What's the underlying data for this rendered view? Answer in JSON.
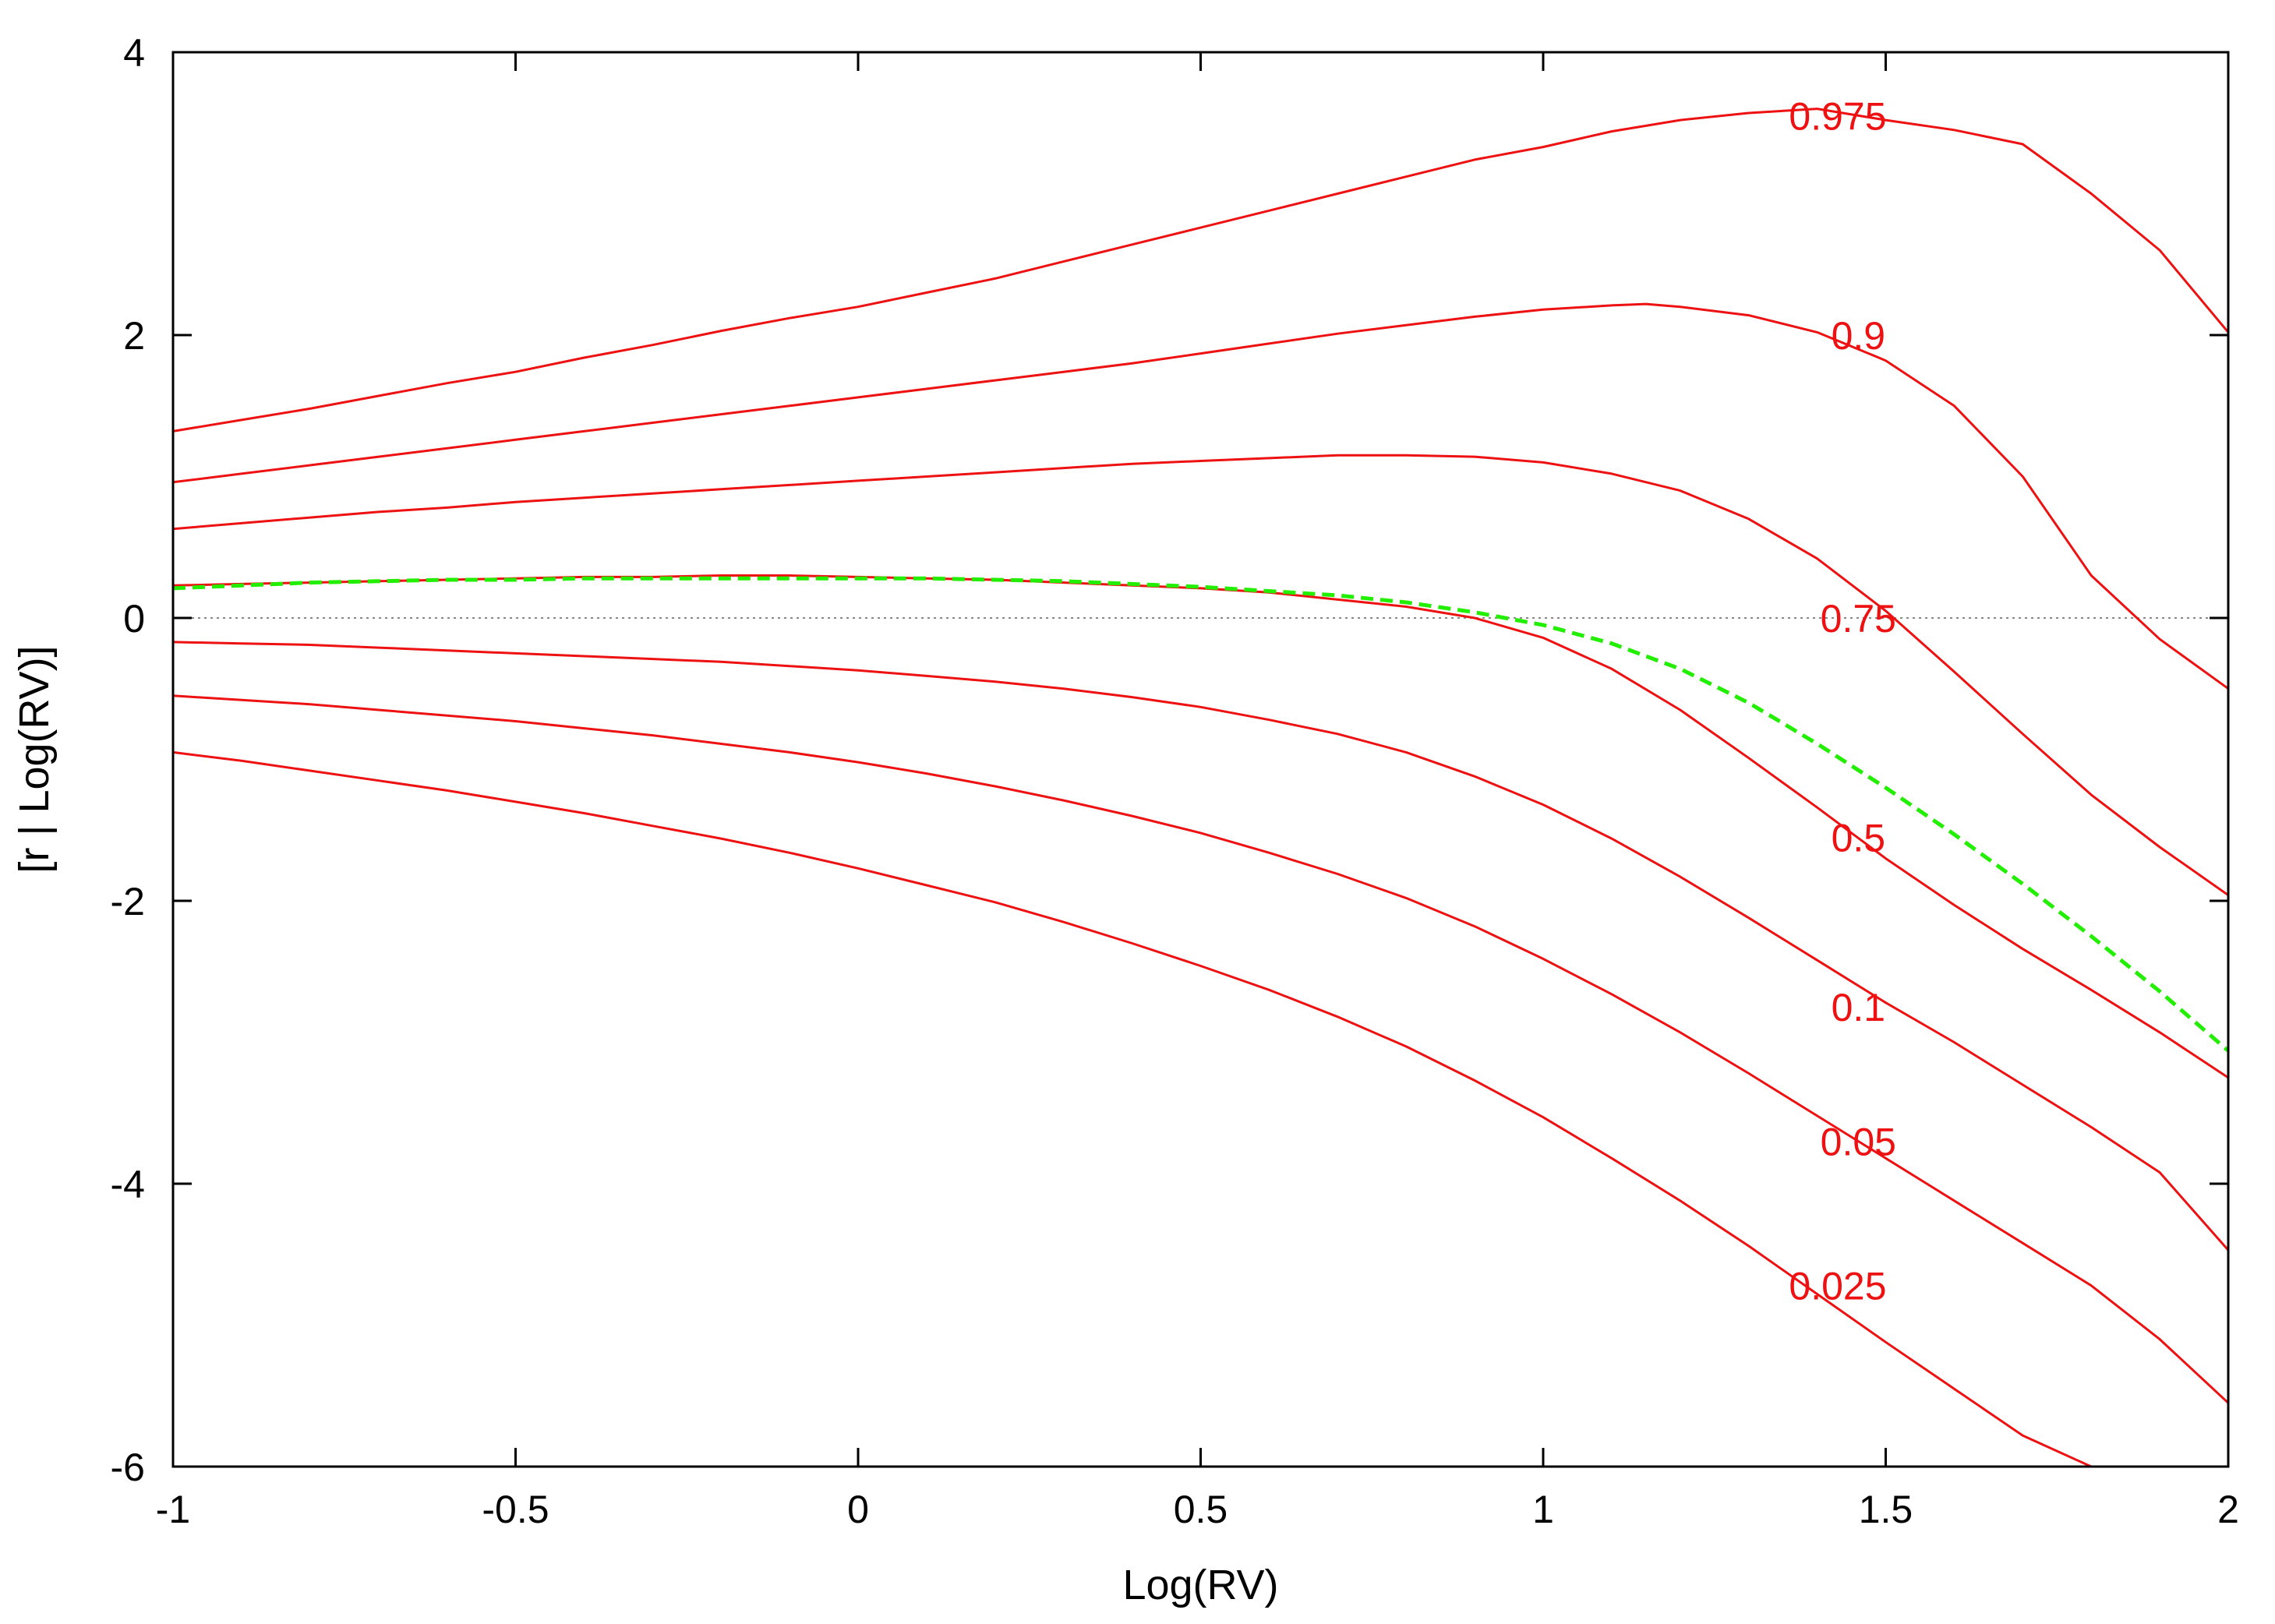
{
  "chart_data": {
    "type": "line",
    "title": "",
    "xlabel": "Log(RV)",
    "ylabel": "[r | Log(RV)]",
    "xlim": [
      -1,
      2
    ],
    "ylim": [
      -6,
      4
    ],
    "xticks": [
      -1,
      -0.5,
      0,
      0.5,
      1,
      1.5,
      2
    ],
    "xtick_labels": [
      "-1",
      "-0.5",
      "0",
      "0.5",
      "1",
      "1.5",
      "2"
    ],
    "yticks": [
      -6,
      -4,
      -2,
      0,
      2,
      4
    ],
    "ytick_labels": [
      "-6",
      "-4",
      "-2",
      "0",
      "2",
      "4"
    ],
    "grid": false,
    "legend": "none",
    "reference_line": {
      "y": 0,
      "style": "dotted",
      "color": "#888888"
    },
    "colors": {
      "quantile": "#ee1111",
      "mean": "#22ee00",
      "axis": "#000000"
    },
    "series": [
      {
        "label": "0.975",
        "label_at": [
          1.43,
          3.55
        ],
        "color": "#ee1111",
        "dash": false,
        "x": [
          -1,
          -0.9,
          -0.8,
          -0.7,
          -0.6,
          -0.5,
          -0.4,
          -0.3,
          -0.2,
          -0.1,
          0,
          0.1,
          0.2,
          0.3,
          0.4,
          0.5,
          0.6,
          0.7,
          0.8,
          0.9,
          1.0,
          1.1,
          1.2,
          1.3,
          1.4,
          1.5,
          1.6,
          1.7,
          1.8,
          1.9,
          2.0
        ],
        "y": [
          1.32,
          1.4,
          1.48,
          1.57,
          1.66,
          1.74,
          1.84,
          1.93,
          2.03,
          2.12,
          2.2,
          2.3,
          2.4,
          2.52,
          2.64,
          2.76,
          2.88,
          3.0,
          3.12,
          3.24,
          3.33,
          3.44,
          3.52,
          3.57,
          3.6,
          3.52,
          3.45,
          3.35,
          3.0,
          2.6,
          2.02
        ]
      },
      {
        "label": "0.9",
        "label_at": [
          1.46,
          2.0
        ],
        "color": "#ee1111",
        "dash": false,
        "x": [
          -1,
          -0.9,
          -0.8,
          -0.7,
          -0.6,
          -0.5,
          -0.4,
          -0.3,
          -0.2,
          -0.1,
          0,
          0.1,
          0.2,
          0.3,
          0.4,
          0.5,
          0.6,
          0.7,
          0.8,
          0.9,
          1.0,
          1.1,
          1.15,
          1.2,
          1.3,
          1.4,
          1.5,
          1.6,
          1.7,
          1.8,
          1.9,
          2.0
        ],
        "y": [
          0.96,
          1.02,
          1.08,
          1.14,
          1.2,
          1.26,
          1.32,
          1.38,
          1.44,
          1.5,
          1.56,
          1.62,
          1.68,
          1.74,
          1.8,
          1.87,
          1.94,
          2.01,
          2.07,
          2.13,
          2.18,
          2.21,
          2.22,
          2.2,
          2.14,
          2.02,
          1.82,
          1.5,
          1.0,
          0.3,
          -0.15,
          -0.5
        ]
      },
      {
        "label": "0.75",
        "label_at": [
          1.46,
          0.0
        ],
        "color": "#ee1111",
        "dash": false,
        "x": [
          -1,
          -0.9,
          -0.8,
          -0.7,
          -0.6,
          -0.5,
          -0.4,
          -0.3,
          -0.2,
          -0.1,
          0,
          0.1,
          0.2,
          0.3,
          0.4,
          0.5,
          0.6,
          0.7,
          0.8,
          0.9,
          1.0,
          1.1,
          1.2,
          1.3,
          1.4,
          1.5,
          1.6,
          1.7,
          1.8,
          1.9,
          2.0
        ],
        "y": [
          0.63,
          0.67,
          0.71,
          0.75,
          0.78,
          0.82,
          0.85,
          0.88,
          0.91,
          0.94,
          0.97,
          1.0,
          1.03,
          1.06,
          1.09,
          1.11,
          1.13,
          1.15,
          1.15,
          1.14,
          1.1,
          1.02,
          0.9,
          0.7,
          0.42,
          0.05,
          -0.38,
          -0.82,
          -1.25,
          -1.62,
          -1.96
        ]
      },
      {
        "label": "0.5",
        "label_at": [
          1.46,
          -1.55
        ],
        "color": "#ee1111",
        "dash": false,
        "x": [
          -1,
          -0.9,
          -0.8,
          -0.7,
          -0.6,
          -0.5,
          -0.4,
          -0.3,
          -0.2,
          -0.1,
          0,
          0.1,
          0.2,
          0.3,
          0.4,
          0.5,
          0.6,
          0.7,
          0.8,
          0.9,
          1.0,
          1.1,
          1.2,
          1.3,
          1.4,
          1.5,
          1.6,
          1.7,
          1.8,
          1.9,
          2.0
        ],
        "y": [
          0.23,
          0.24,
          0.25,
          0.26,
          0.27,
          0.28,
          0.29,
          0.29,
          0.3,
          0.3,
          0.29,
          0.28,
          0.27,
          0.25,
          0.23,
          0.21,
          0.18,
          0.13,
          0.08,
          0.0,
          -0.14,
          -0.36,
          -0.65,
          -0.99,
          -1.34,
          -1.7,
          -2.03,
          -2.34,
          -2.63,
          -2.93,
          -3.25
        ]
      },
      {
        "label": "0.1",
        "label_at": [
          1.46,
          -2.75
        ],
        "color": "#ee1111",
        "dash": false,
        "x": [
          -1,
          -0.9,
          -0.8,
          -0.7,
          -0.6,
          -0.5,
          -0.4,
          -0.3,
          -0.2,
          -0.1,
          0,
          0.1,
          0.2,
          0.3,
          0.4,
          0.5,
          0.6,
          0.7,
          0.8,
          0.9,
          1.0,
          1.1,
          1.2,
          1.3,
          1.4,
          1.5,
          1.6,
          1.7,
          1.8,
          1.9,
          2.0
        ],
        "y": [
          -0.17,
          -0.18,
          -0.19,
          -0.21,
          -0.23,
          -0.25,
          -0.27,
          -0.29,
          -0.31,
          -0.34,
          -0.37,
          -0.41,
          -0.45,
          -0.5,
          -0.56,
          -0.63,
          -0.72,
          -0.82,
          -0.95,
          -1.12,
          -1.32,
          -1.56,
          -1.83,
          -2.12,
          -2.42,
          -2.72,
          -3.0,
          -3.3,
          -3.6,
          -3.92,
          -4.47
        ]
      },
      {
        "label": "0.05",
        "label_at": [
          1.46,
          -3.7
        ],
        "color": "#ee1111",
        "dash": false,
        "x": [
          -1,
          -0.9,
          -0.8,
          -0.7,
          -0.6,
          -0.5,
          -0.4,
          -0.3,
          -0.2,
          -0.1,
          0,
          0.1,
          0.2,
          0.3,
          0.4,
          0.5,
          0.6,
          0.7,
          0.8,
          0.9,
          1.0,
          1.1,
          1.2,
          1.3,
          1.4,
          1.5,
          1.6,
          1.7,
          1.8,
          1.9,
          2.0
        ],
        "y": [
          -0.55,
          -0.58,
          -0.61,
          -0.65,
          -0.69,
          -0.73,
          -0.78,
          -0.83,
          -0.89,
          -0.95,
          -1.02,
          -1.1,
          -1.19,
          -1.29,
          -1.4,
          -1.52,
          -1.66,
          -1.81,
          -1.98,
          -2.18,
          -2.41,
          -2.66,
          -2.93,
          -3.22,
          -3.52,
          -3.82,
          -4.12,
          -4.42,
          -4.72,
          -5.1,
          -5.55
        ]
      },
      {
        "label": "0.025",
        "label_at": [
          1.43,
          -4.72
        ],
        "color": "#ee1111",
        "dash": false,
        "x": [
          -1,
          -0.9,
          -0.8,
          -0.7,
          -0.6,
          -0.5,
          -0.4,
          -0.3,
          -0.2,
          -0.1,
          0,
          0.1,
          0.2,
          0.3,
          0.4,
          0.5,
          0.6,
          0.7,
          0.8,
          0.9,
          1.0,
          1.1,
          1.2,
          1.3,
          1.4,
          1.5,
          1.6,
          1.7,
          1.8,
          1.84
        ],
        "y": [
          -0.95,
          -1.01,
          -1.08,
          -1.15,
          -1.22,
          -1.3,
          -1.38,
          -1.47,
          -1.56,
          -1.66,
          -1.77,
          -1.89,
          -2.01,
          -2.15,
          -2.3,
          -2.46,
          -2.63,
          -2.82,
          -3.03,
          -3.27,
          -3.53,
          -3.82,
          -4.12,
          -4.44,
          -4.78,
          -5.12,
          -5.45,
          -5.78,
          -6.0,
          -6.0
        ]
      },
      {
        "label": "",
        "color": "#22ee00",
        "dash": true,
        "x": [
          -1,
          -0.9,
          -0.8,
          -0.7,
          -0.6,
          -0.5,
          -0.4,
          -0.3,
          -0.2,
          -0.1,
          0,
          0.1,
          0.2,
          0.3,
          0.4,
          0.5,
          0.6,
          0.7,
          0.8,
          0.9,
          1.0,
          1.1,
          1.2,
          1.3,
          1.4,
          1.5,
          1.6,
          1.7,
          1.8,
          1.9,
          2.0
        ],
        "y": [
          0.21,
          0.23,
          0.25,
          0.26,
          0.27,
          0.27,
          0.28,
          0.28,
          0.28,
          0.28,
          0.28,
          0.28,
          0.27,
          0.26,
          0.24,
          0.22,
          0.19,
          0.16,
          0.11,
          0.04,
          -0.05,
          -0.18,
          -0.36,
          -0.6,
          -0.89,
          -1.2,
          -1.53,
          -1.88,
          -2.25,
          -2.64,
          -3.06
        ]
      }
    ]
  }
}
